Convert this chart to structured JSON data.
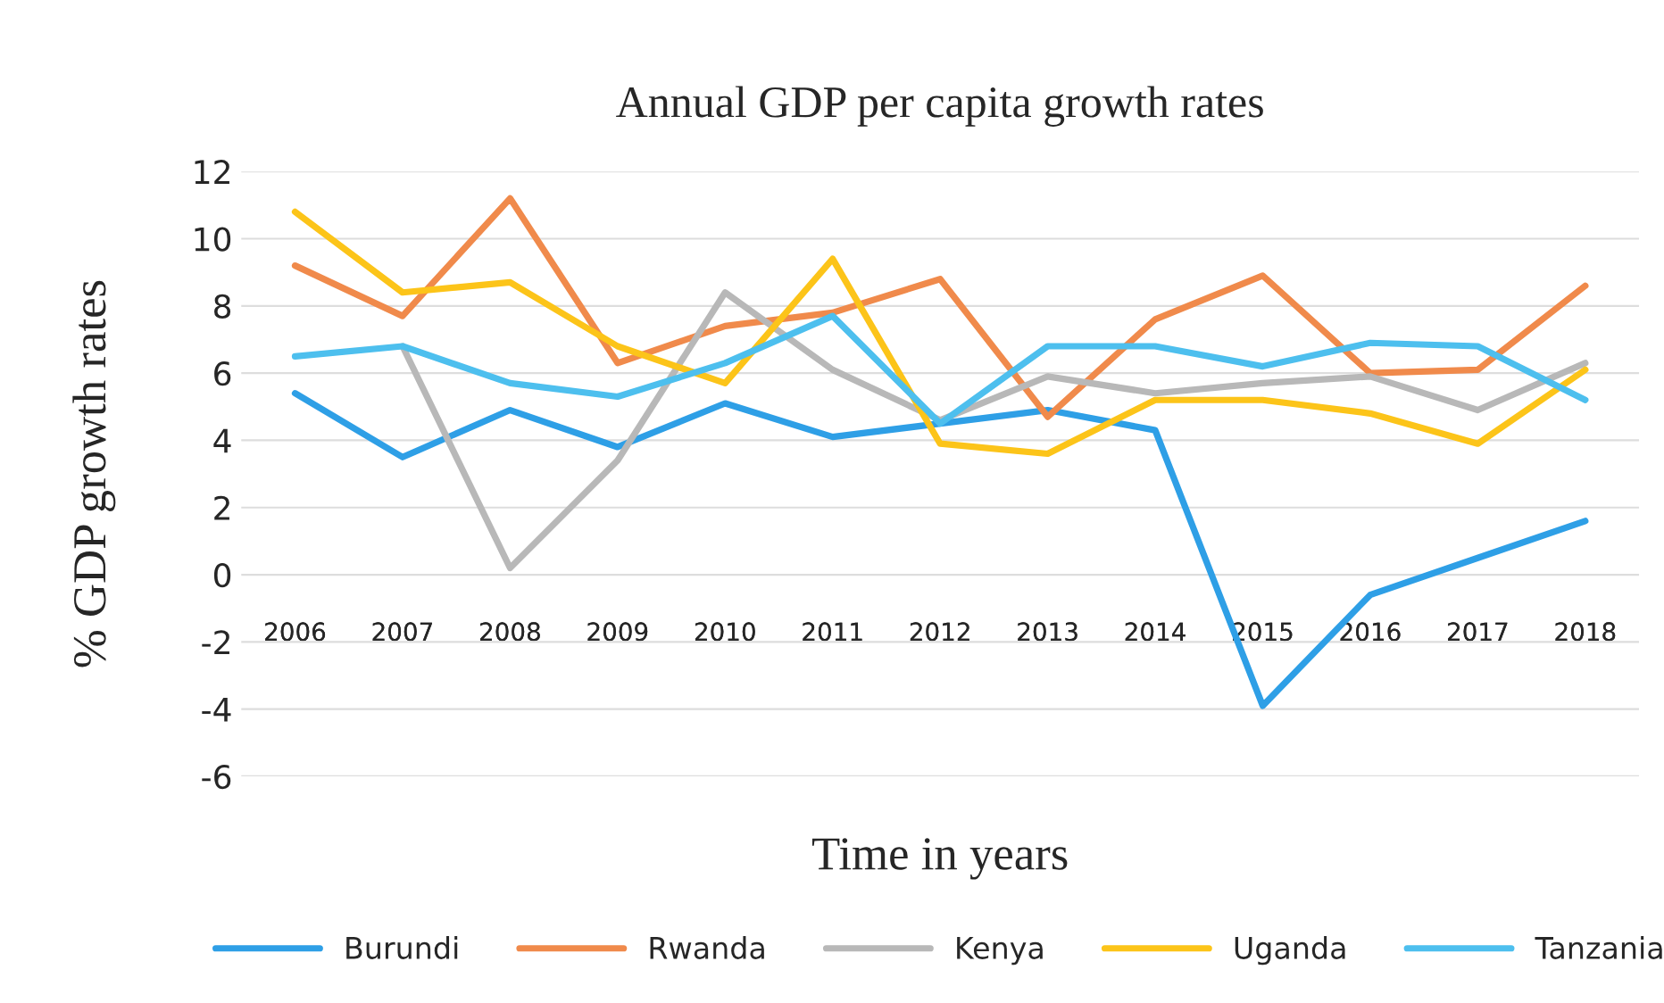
{
  "chart_data": {
    "type": "line",
    "title": "Annual GDP per capita growth rates",
    "xlabel": "Time in years",
    "ylabel": "% GDP growth rates",
    "categories": [
      "2006",
      "2007",
      "2008",
      "2009",
      "2010",
      "2011",
      "2012",
      "2013",
      "2014",
      "2015",
      "2016",
      "2017",
      "2018"
    ],
    "series": [
      {
        "name": "Burundi",
        "color": "#2e9fe6",
        "values": [
          5.4,
          3.5,
          4.9,
          3.8,
          5.1,
          4.1,
          4.5,
          4.9,
          4.3,
          -3.9,
          -0.6,
          0.5,
          1.6
        ]
      },
      {
        "name": "Rwanda",
        "color": "#f08a4b",
        "values": [
          9.2,
          7.7,
          11.2,
          6.3,
          7.4,
          7.8,
          8.8,
          4.7,
          7.6,
          8.9,
          6.0,
          6.1,
          8.6
        ]
      },
      {
        "name": "Kenya",
        "color": "#b8b8b8",
        "values": [
          null,
          6.8,
          0.2,
          3.4,
          8.4,
          6.1,
          4.6,
          5.9,
          5.4,
          5.7,
          5.9,
          4.9,
          6.3
        ]
      },
      {
        "name": "Uganda",
        "color": "#fcc419",
        "values": [
          10.8,
          8.4,
          8.7,
          6.8,
          5.7,
          9.4,
          3.9,
          3.6,
          5.2,
          5.2,
          4.8,
          3.9,
          6.1
        ]
      },
      {
        "name": "Tanzania",
        "color": "#4dbfee",
        "values": [
          6.5,
          6.8,
          5.7,
          5.3,
          6.3,
          7.7,
          4.5,
          6.8,
          6.8,
          6.2,
          6.9,
          6.8,
          5.2
        ]
      }
    ],
    "ylim": [
      -6,
      12
    ],
    "yticks": [
      -6,
      -4,
      -2,
      0,
      2,
      4,
      6,
      8,
      10,
      12
    ],
    "grid": "y",
    "legend": "bottom",
    "marker": "none",
    "line_style": "solid"
  }
}
